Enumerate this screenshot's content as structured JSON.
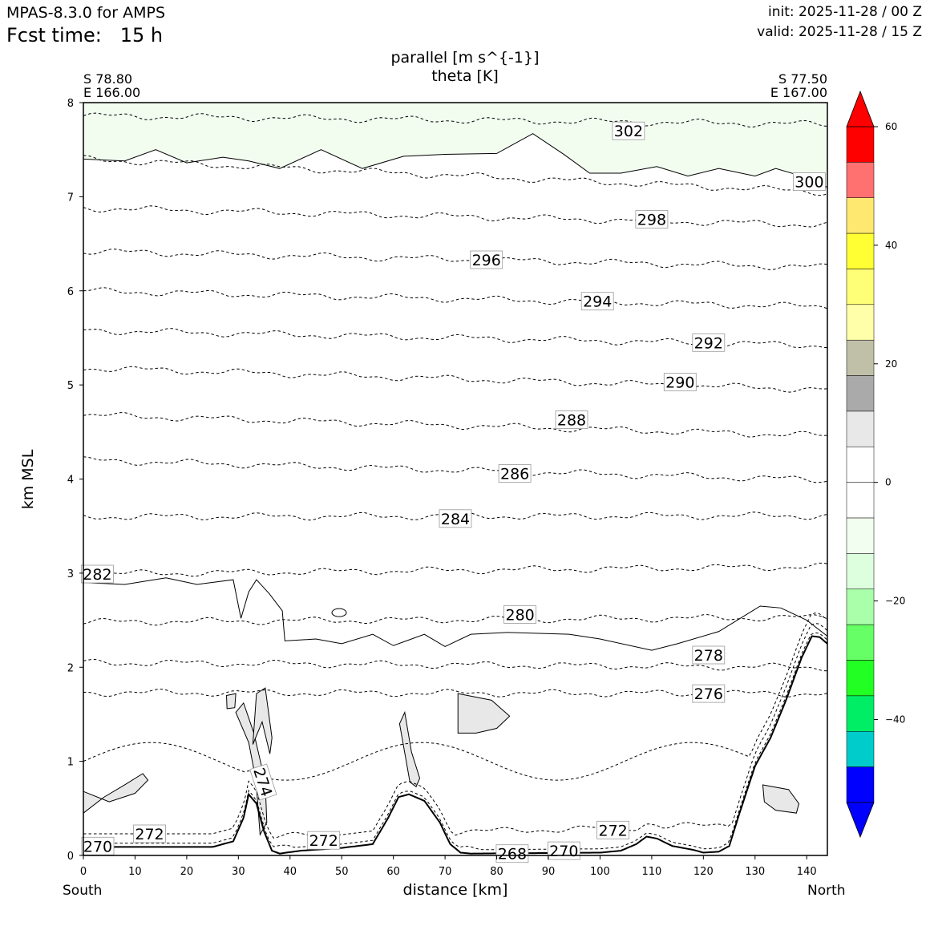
{
  "header": {
    "model": "MPAS-8.3.0 for AMPS",
    "fcst_label": "Fcst time:",
    "fcst_value": "15 h",
    "init": "init: 2025-11-28 / 00 Z",
    "valid": "valid: 2025-11-28 / 15 Z"
  },
  "section": {
    "start_lat": "S 78.80",
    "start_lon": "E 166.00",
    "end_lat": "S 77.50",
    "end_lon": "E 167.00",
    "left_end_label": "South",
    "right_end_label": "North"
  },
  "chart_data": {
    "type": "cross-section",
    "title": "parallel [m s^{-1}]",
    "subtitle": "theta [K]",
    "xlabel": "distance [km]",
    "ylabel": "km MSL",
    "xlim": [
      0,
      144
    ],
    "ylim": [
      0,
      8
    ],
    "x_ticks": [
      0,
      10,
      20,
      30,
      40,
      50,
      60,
      70,
      80,
      90,
      100,
      110,
      120,
      130,
      140
    ],
    "y_ticks": [
      0,
      1,
      2,
      3,
      4,
      5,
      6,
      7,
      8
    ],
    "terrain": {
      "x": [
        0,
        25,
        29,
        31,
        32,
        33.5,
        35,
        36.5,
        38,
        42,
        50,
        56,
        59,
        61,
        63,
        66,
        69,
        71,
        73,
        75,
        100,
        104,
        107,
        109,
        111,
        114,
        118,
        120,
        123,
        125,
        127,
        130,
        133,
        136,
        139,
        141,
        142.5,
        144
      ],
      "height_km": [
        0.09,
        0.09,
        0.15,
        0.4,
        0.65,
        0.55,
        0.25,
        0.05,
        0.02,
        0.05,
        0.08,
        0.12,
        0.4,
        0.62,
        0.65,
        0.58,
        0.35,
        0.12,
        0.03,
        0.02,
        0.03,
        0.05,
        0.12,
        0.2,
        0.18,
        0.1,
        0.06,
        0.03,
        0.04,
        0.1,
        0.45,
        0.95,
        1.25,
        1.65,
        2.1,
        2.33,
        2.32,
        2.25
      ]
    },
    "theta_contours": {
      "style": "dashed",
      "levels_K": [
        270,
        272,
        274,
        276,
        278,
        280,
        282,
        284,
        286,
        288,
        290,
        292,
        294,
        296,
        298,
        300,
        302
      ],
      "lines": [
        {
          "level": 302,
          "h_start_km": 7.86,
          "h_end_km": 7.77
        },
        {
          "level": 300,
          "h_start_km": 7.4,
          "h_end_km": 7.05
        },
        {
          "level": 298,
          "h_start_km": 6.88,
          "h_end_km": 6.7
        },
        {
          "level": 296,
          "h_start_km": 6.42,
          "h_end_km": 6.25
        },
        {
          "level": 294,
          "h_start_km": 6.0,
          "h_end_km": 5.83
        },
        {
          "level": 292,
          "h_start_km": 5.58,
          "h_end_km": 5.42
        },
        {
          "level": 290,
          "h_start_km": 5.18,
          "h_end_km": 4.95
        },
        {
          "level": 288,
          "h_start_km": 4.68,
          "h_end_km": 4.46
        },
        {
          "level": 286,
          "h_start_km": 4.2,
          "h_end_km": 3.99
        },
        {
          "level": 284,
          "h_start_km": 3.6,
          "h_end_km": 3.61
        },
        {
          "level": 282,
          "h_start_km": 2.99,
          "h_end_km": 3.07
        },
        {
          "level": 280,
          "h_start_km": 2.48,
          "h_end_km": 2.53
        },
        {
          "level": 278,
          "h_start_km": 2.05,
          "h_end_km": 2.0
        },
        {
          "level": 276,
          "h_start_km": 1.73,
          "h_end_km": 1.72
        },
        {
          "level": 274,
          "h_start_km": 1.02,
          "h_end_km": 2.3
        },
        {
          "level": 272,
          "h_start_km": 0.15,
          "h_end_km": 0.35
        },
        {
          "level": 270,
          "h_start_km": 0.1,
          "h_end_km": 0.02
        }
      ]
    },
    "contour_labels": [
      {
        "text": "302",
        "x_km": 105.5,
        "h_km": 7.7
      },
      {
        "text": "300",
        "x_km": 140.5,
        "h_km": 7.16
      },
      {
        "text": "298",
        "x_km": 110,
        "h_km": 6.76
      },
      {
        "text": "296",
        "x_km": 78,
        "h_km": 6.33
      },
      {
        "text": "294",
        "x_km": 99.5,
        "h_km": 5.89
      },
      {
        "text": "292",
        "x_km": 121,
        "h_km": 5.45
      },
      {
        "text": "290",
        "x_km": 115.5,
        "h_km": 5.03
      },
      {
        "text": "288",
        "x_km": 94.5,
        "h_km": 4.63
      },
      {
        "text": "286",
        "x_km": 83.5,
        "h_km": 4.06
      },
      {
        "text": "284",
        "x_km": 72,
        "h_km": 3.58
      },
      {
        "text": "282",
        "x_km": 2.7,
        "h_km": 2.99
      },
      {
        "text": "280",
        "x_km": 84.5,
        "h_km": 2.56
      },
      {
        "text": "278",
        "x_km": 121,
        "h_km": 2.13
      },
      {
        "text": "276",
        "x_km": 121,
        "h_km": 1.72
      },
      {
        "text": "274",
        "x_km": 34.8,
        "h_km": 0.78
      },
      {
        "text": "272",
        "x_km": 12.8,
        "h_km": 0.23
      },
      {
        "text": "272",
        "x_km": 46.5,
        "h_km": 0.16
      },
      {
        "text": "272",
        "x_km": 102.5,
        "h_km": 0.27
      },
      {
        "text": "270",
        "x_km": 2.8,
        "h_km": 0.1
      },
      {
        "text": "268",
        "x_km": 83,
        "h_km": 0.02
      },
      {
        "text": "270",
        "x_km": 93,
        "h_km": 0.05
      }
    ],
    "wind_zero_contour": {
      "style": "solid",
      "upper_boundary_h_km": [
        [
          0,
          7.4
        ],
        [
          8,
          7.38
        ],
        [
          14,
          7.5
        ],
        [
          20,
          7.36
        ],
        [
          27,
          7.42
        ],
        [
          32,
          7.38
        ],
        [
          38,
          7.3
        ],
        [
          46,
          7.5
        ],
        [
          54,
          7.3
        ],
        [
          62,
          7.43
        ],
        [
          70,
          7.45
        ],
        [
          80,
          7.46
        ],
        [
          87,
          7.67
        ],
        [
          93,
          7.45
        ],
        [
          98,
          7.25
        ],
        [
          104,
          7.25
        ],
        [
          111,
          7.32
        ],
        [
          117,
          7.22
        ],
        [
          123,
          7.3
        ],
        [
          130,
          7.22
        ],
        [
          134,
          7.3
        ],
        [
          139,
          7.22
        ],
        [
          144,
          7.1
        ]
      ],
      "low_boundary_h_km": [
        [
          0,
          2.9
        ],
        [
          8,
          2.88
        ],
        [
          16,
          2.95
        ],
        [
          22,
          2.88
        ],
        [
          29,
          2.93
        ],
        [
          30.5,
          2.52
        ],
        [
          32,
          2.8
        ],
        [
          33.5,
          2.93
        ],
        [
          36,
          2.78
        ],
        [
          38.5,
          2.6
        ],
        [
          39,
          2.28
        ],
        [
          45,
          2.3
        ],
        [
          50,
          2.25
        ],
        [
          56,
          2.35
        ],
        [
          60,
          2.23
        ],
        [
          66,
          2.35
        ],
        [
          70,
          2.22
        ],
        [
          75,
          2.35
        ],
        [
          82,
          2.37
        ],
        [
          94,
          2.35
        ],
        [
          100,
          2.3
        ],
        [
          110,
          2.18
        ],
        [
          115,
          2.25
        ],
        [
          123,
          2.38
        ],
        [
          131,
          2.65
        ],
        [
          135,
          2.63
        ],
        [
          140,
          2.5
        ],
        [
          144,
          2.33
        ]
      ]
    },
    "negative_region_fill": "light green: -10 to 0 m s^-1 above ~7.3 km",
    "positive_region_fill": "light gray: 0 to 10 m s^-1 in small low-level cells",
    "colorbar": {
      "min": -60,
      "max": 60,
      "step": 10,
      "ticks": [
        "60",
        "40",
        "20",
        "0",
        "−20",
        "−40"
      ],
      "tick_values": [
        60,
        40,
        20,
        0,
        -20,
        -40
      ],
      "extend": "both",
      "colors_top_to_bottom": [
        "#ff0000",
        "#ff7070",
        "#ffe870",
        "#ffff33",
        "#ffff77",
        "#ffffaa",
        "#c0c0a8",
        "#aaaaaa",
        "#e8e8e8",
        "#ffffff",
        "#ffffff",
        "#f2fff0",
        "#ddffdd",
        "#aaffaa",
        "#66ff66",
        "#22ff22",
        "#00ee66",
        "#00cccc",
        "#0000ff"
      ],
      "over_color": "#ff0000",
      "under_color": "#0000ff"
    }
  }
}
